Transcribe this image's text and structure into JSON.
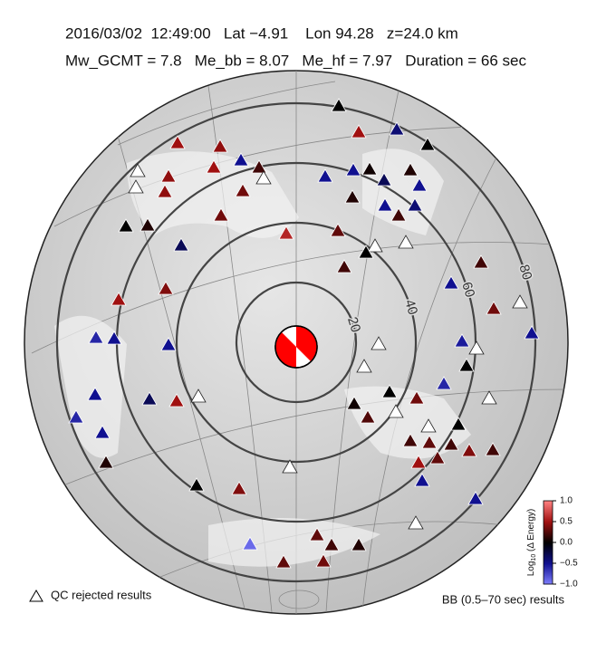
{
  "header": {
    "line1": "2016/03/02  12:49:00   Lat −4.91    Lon 94.28   z=24.0 km",
    "line2": "Mw_GCMT = 7.8   Me_bb = 8.07   Me_hf = 7.97   Duration = 66 sec"
  },
  "rings": [
    20,
    40,
    60,
    80
  ],
  "stations": [
    0,
    0.5,
    -0.4,
    0,
    0.5,
    0.45,
    0.5,
    -0.5,
    0.2,
    null,
    null,
    null,
    0.45,
    0.45,
    0.35,
    -0.5,
    -0.5,
    0.05,
    0.1,
    -0.5,
    -0.3,
    0.1,
    -0.5,
    -0.4,
    0.2,
    0,
    0.1,
    0.35,
    0.6,
    0.3,
    -0.3,
    null,
    null,
    0,
    0.2,
    0.2,
    -0.5,
    0.4,
    0.5,
    null,
    0.35,
    -0.6,
    -0.5,
    -0.5,
    null,
    -0.55,
    -0.5,
    null,
    null,
    0,
    -0.6,
    -0.3,
    0.5,
    null,
    -0.5,
    0,
    0.35,
    null,
    0.05,
    0.25,
    null,
    -0.6,
    -0.5,
    null,
    0,
    0.2,
    0.3,
    0.2,
    0.4,
    0.2,
    0.1,
    0.5,
    0.3,
    -0.5,
    0,
    0.4,
    null,
    -0.5,
    null,
    -0.9,
    0.3,
    0.2,
    0.1,
    0.3,
    0.35
  ],
  "colorbar": {
    "label_log": "Log",
    "label_sub": "10",
    "label_rest": " (Δ Energy)",
    "lim": [
      -1,
      1
    ],
    "colors": [
      "#8080ff",
      "#101090",
      "#000000",
      "#a01010",
      "#ff8080"
    ],
    "ticks": [
      {
        "value": 1,
        "label": "1.0"
      },
      {
        "value": 0.5,
        "label": "0.5"
      },
      {
        "value": 0,
        "label": "0.0"
      },
      {
        "value": -0.5,
        "label": "−0.5"
      },
      {
        "value": -1,
        "label": "−1.0"
      }
    ]
  },
  "legend": {
    "qc": "QC rejected results",
    "bb": "BB (0.5–70 sec) results"
  }
}
